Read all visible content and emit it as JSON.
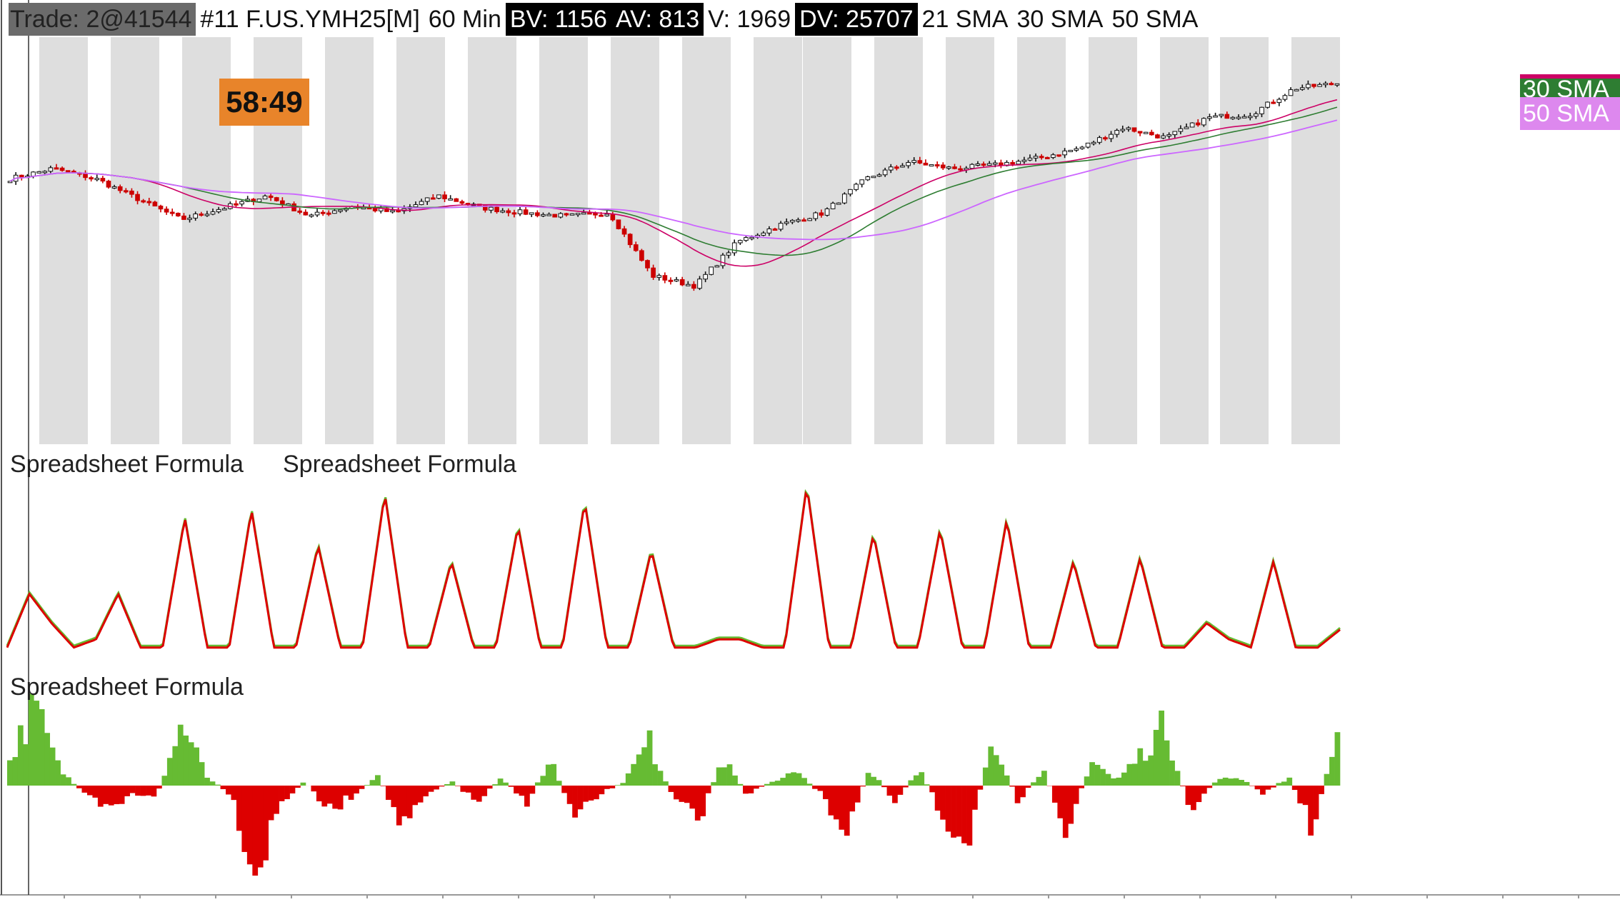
{
  "header": {
    "trade": "Trade: 2@41544",
    "symbol": "#11 F.US.YMH25[M]",
    "interval": "60 Min",
    "bv": "BV: 1156",
    "av": "AV: 813",
    "v": "V: 1969",
    "dv": "DV: 25707",
    "sma21": "21 SMA",
    "sma30": "30 SMA",
    "sma50": "50 SMA"
  },
  "timer": "58:49",
  "right_tags": {
    "sma30": "30 SMA",
    "sma50": "50 SMA"
  },
  "panel_labels": {
    "volume_a": "Spreadsheet Formula",
    "volume_b": "Spreadsheet Formula",
    "delta": "Spreadsheet Formula"
  },
  "colors": {
    "session_shade": "#dedede",
    "sma21": "#cc0066",
    "sma30": "#2e7d32",
    "sma50": "#cc66ff",
    "up": "#66bb33",
    "down": "#dd0000",
    "timer_bg": "#e8842a"
  },
  "chart_data": [
    {
      "type": "candlestick",
      "title": "#11 F.US.YMH25[M] 60 Min",
      "series_names": [
        "21 SMA",
        "30 SMA",
        "50 SMA"
      ],
      "close_anchors": [
        41520,
        41580,
        41520,
        41400,
        41280,
        41350,
        41420,
        41300,
        41360,
        41320,
        41420,
        41350,
        41320,
        41300,
        41320,
        40950,
        40890,
        41150,
        41250,
        41320,
        41520,
        41620,
        41580,
        41600,
        41640,
        41700,
        41820,
        41760,
        41880,
        41900,
        42050,
        42080
      ]
    },
    {
      "type": "line",
      "series": [
        {
          "name": "Spreadsheet Formula",
          "values": [
            0.05,
            0.38,
            0.2,
            0.05,
            0.1,
            0.38,
            0.05,
            0.05,
            0.85,
            0.05,
            0.05,
            0.9,
            0.05,
            0.05,
            0.68,
            0.05,
            0.05,
            1.0,
            0.05,
            0.05,
            0.58,
            0.05,
            0.05,
            0.8,
            0.05,
            0.05,
            0.95,
            0.05,
            0.05,
            0.65,
            0.05,
            0.05,
            0.1,
            0.1,
            0.05,
            0.05,
            1.05,
            0.05,
            0.05,
            0.75,
            0.05,
            0.05,
            0.78,
            0.05,
            0.05,
            0.84,
            0.05,
            0.05,
            0.58,
            0.05,
            0.05,
            0.6,
            0.05,
            0.05,
            0.2,
            0.1,
            0.05,
            0.58,
            0.05,
            0.05,
            0.16
          ]
        }
      ]
    },
    {
      "type": "bar",
      "series": [
        {
          "name": "Spreadsheet Formula",
          "values": [
            0.3,
            0.9,
            0.2,
            -0.1,
            -0.3,
            -0.1,
            -0.1,
            0.7,
            0.1,
            -0.1,
            -1.0,
            -0.2,
            0.05,
            -0.3,
            -0.1,
            0.1,
            -0.5,
            -0.1,
            0.05,
            -0.2,
            0.1,
            -0.2,
            0.3,
            -0.4,
            -0.1,
            0.05,
            0.5,
            -0.15,
            -0.4,
            0.3,
            -0.1,
            0.05,
            0.15,
            -0.1,
            -0.5,
            0.2,
            -0.2,
            0.2,
            -0.4,
            -0.6,
            0.6,
            -0.2,
            0.2,
            -0.5,
            0.3,
            0.05,
            0.35,
            0.7,
            -0.3,
            0.05,
            0.1,
            -0.1,
            0.1,
            -0.5,
            0.6
          ]
        }
      ]
    }
  ]
}
